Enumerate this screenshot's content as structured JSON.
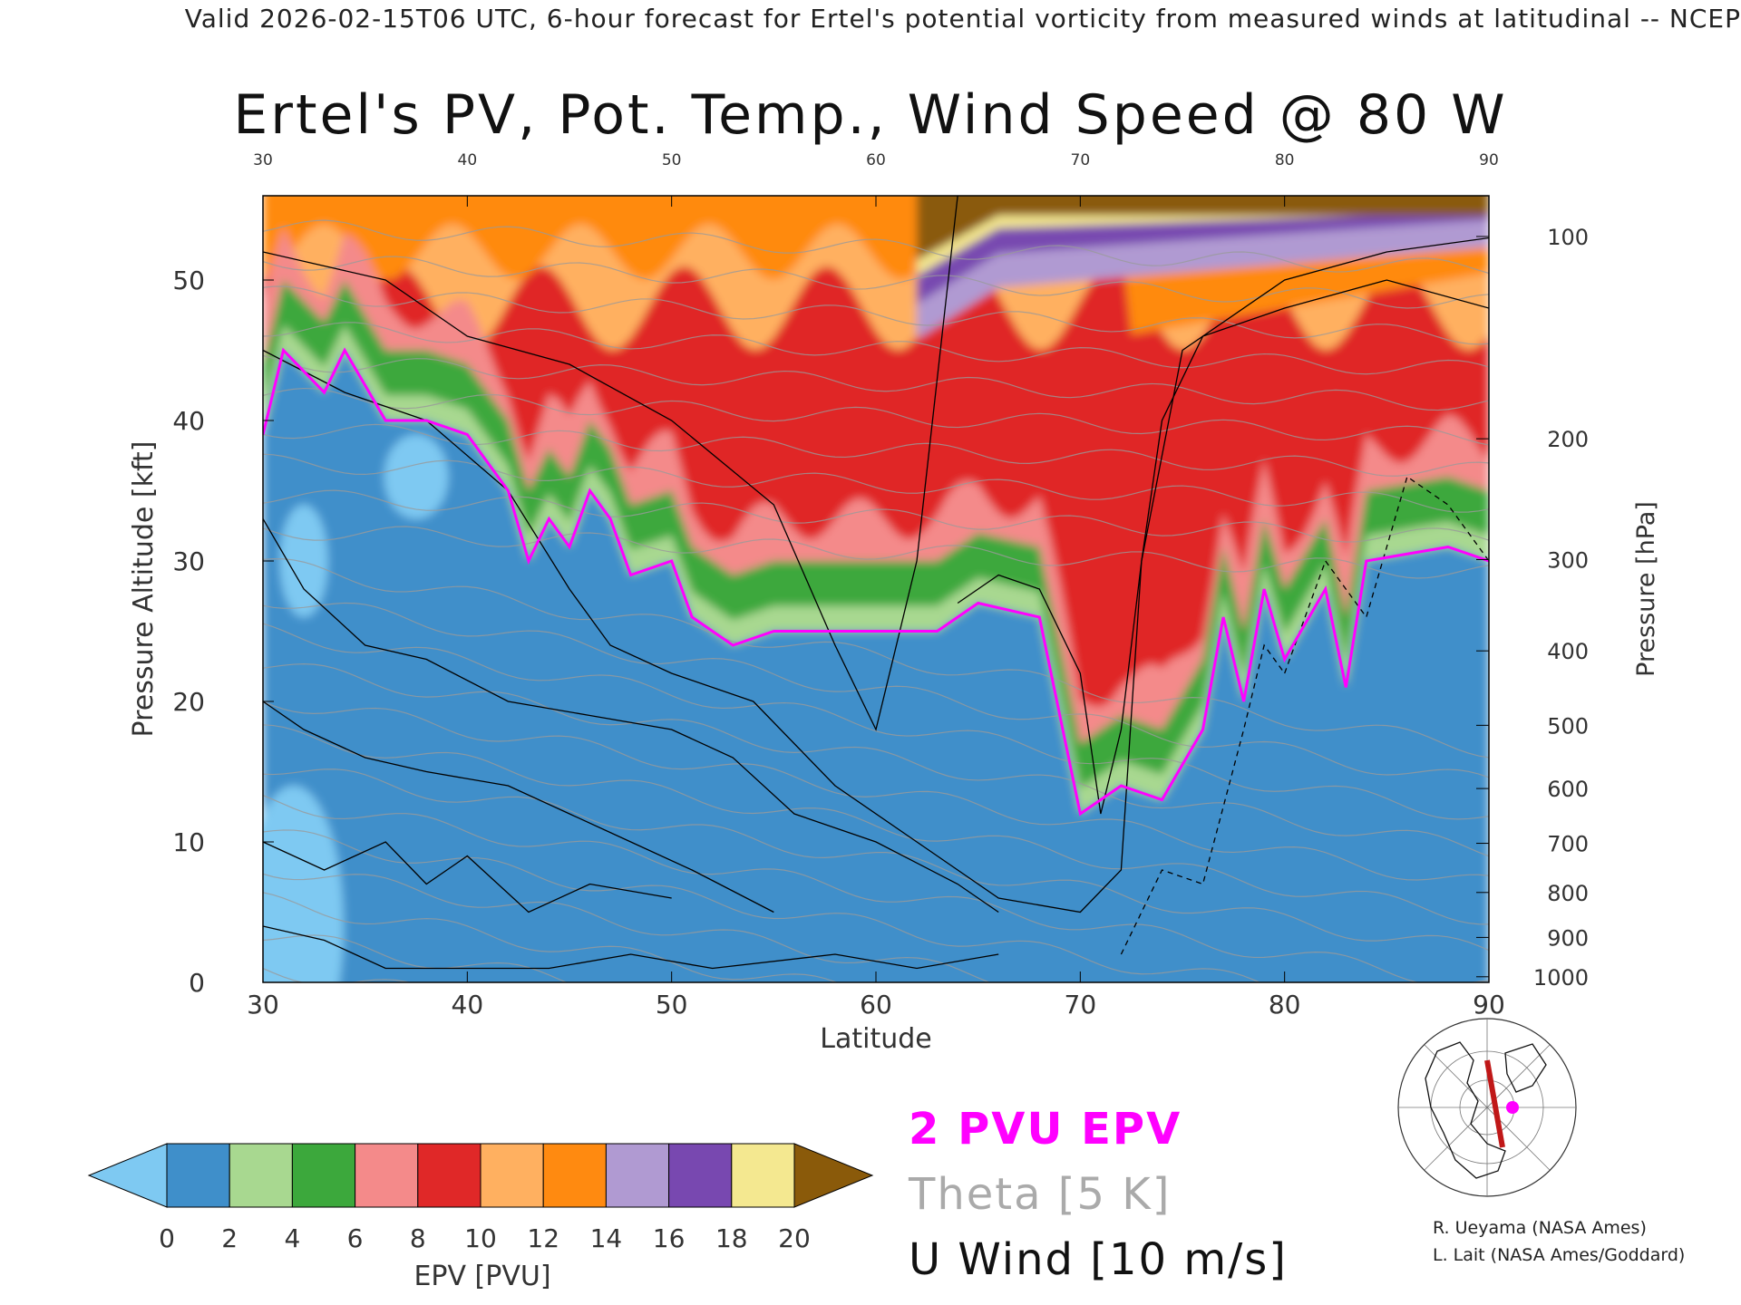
{
  "header": "Valid 2026-02-15T06 UTC, 6-hour forecast for Ertel's potential vorticity from measured winds at latitudinal -- NCEP",
  "chart_data": {
    "type": "heatmap",
    "title": "Ertel's PV, Pot. Temp., Wind Speed @ 80 W",
    "xlabel": "Latitude",
    "ylabel_left": "Pressure Altitude [kft]",
    "ylabel_right": "Pressure [hPa]",
    "xlim": [
      30,
      90
    ],
    "ylim_kft": [
      0,
      56
    ],
    "x_ticks": [
      "30",
      "40",
      "50",
      "60",
      "70",
      "80",
      "90"
    ],
    "y_ticks_kft": [
      "0",
      "10",
      "20",
      "30",
      "40",
      "50"
    ],
    "pressure_ticks": [
      {
        "label": "100",
        "kft": 53.1
      },
      {
        "label": "200",
        "kft": 38.7
      },
      {
        "label": "300",
        "kft": 30.1
      },
      {
        "label": "400",
        "kft": 23.6
      },
      {
        "label": "500",
        "kft": 18.3
      },
      {
        "label": "600",
        "kft": 13.8
      },
      {
        "label": "700",
        "kft": 9.9
      },
      {
        "label": "800",
        "kft": 6.4
      },
      {
        "label": "900",
        "kft": 3.2
      },
      {
        "label": "1000",
        "kft": 0.4
      }
    ],
    "dynamic_tropopause_2pvu_kft": [
      {
        "lat": 30,
        "kft": 39
      },
      {
        "lat": 31,
        "kft": 45
      },
      {
        "lat": 33,
        "kft": 42
      },
      {
        "lat": 34,
        "kft": 45
      },
      {
        "lat": 36,
        "kft": 40
      },
      {
        "lat": 38,
        "kft": 40
      },
      {
        "lat": 40,
        "kft": 39
      },
      {
        "lat": 41,
        "kft": 37
      },
      {
        "lat": 42,
        "kft": 35
      },
      {
        "lat": 43,
        "kft": 30
      },
      {
        "lat": 44,
        "kft": 33
      },
      {
        "lat": 45,
        "kft": 31
      },
      {
        "lat": 46,
        "kft": 35
      },
      {
        "lat": 47,
        "kft": 33
      },
      {
        "lat": 48,
        "kft": 29
      },
      {
        "lat": 50,
        "kft": 30
      },
      {
        "lat": 51,
        "kft": 26
      },
      {
        "lat": 53,
        "kft": 24
      },
      {
        "lat": 55,
        "kft": 25
      },
      {
        "lat": 60,
        "kft": 25
      },
      {
        "lat": 63,
        "kft": 25
      },
      {
        "lat": 65,
        "kft": 27
      },
      {
        "lat": 68,
        "kft": 26
      },
      {
        "lat": 70,
        "kft": 12
      },
      {
        "lat": 71,
        "kft": 13
      },
      {
        "lat": 72,
        "kft": 14
      },
      {
        "lat": 74,
        "kft": 13
      },
      {
        "lat": 76,
        "kft": 18
      },
      {
        "lat": 77,
        "kft": 26
      },
      {
        "lat": 78,
        "kft": 20
      },
      {
        "lat": 79,
        "kft": 28
      },
      {
        "lat": 80,
        "kft": 23
      },
      {
        "lat": 82,
        "kft": 28
      },
      {
        "lat": 83,
        "kft": 21
      },
      {
        "lat": 84,
        "kft": 30
      },
      {
        "lat": 88,
        "kft": 31
      },
      {
        "lat": 90,
        "kft": 30
      }
    ],
    "colorbar": {
      "label": "EPV [PVU]",
      "ticks": [
        "0",
        "2",
        "4",
        "6",
        "8",
        "10",
        "12",
        "14",
        "16",
        "18",
        "20"
      ],
      "colors": {
        "under": "#7ec9f2",
        "c0_2": "#3f8fca",
        "c2_4": "#a8d890",
        "c4_6": "#3ca83c",
        "c6_8": "#f48a8a",
        "c8_10": "#e02828",
        "c10_12": "#ffb060",
        "c12_14": "#ff8a10",
        "c14_16": "#b09ad2",
        "c16_18": "#7848b0",
        "c18_20": "#f4e890",
        "over": "#8a5a0a"
      }
    },
    "legend": {
      "pvu": "2 PVU EPV",
      "theta": "Theta [5 K]",
      "wind": "U Wind [10 m/s]"
    },
    "colors": {
      "pvu_line": "#ff00ff",
      "theta_line": "#9a9a9a",
      "wind_line": "#000000"
    }
  },
  "credits": [
    "R. Ueyama (NASA Ames)",
    "L. Lait (NASA Ames/Goddard)"
  ]
}
